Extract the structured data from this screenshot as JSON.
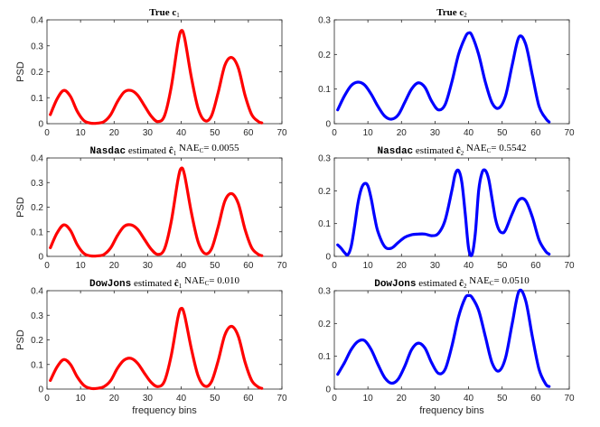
{
  "colors": {
    "c1": "#ff0000",
    "c2": "#0000ff"
  },
  "chart_data": [
    {
      "type": "line",
      "title": {
        "prefix": "True ",
        "symbol": "c",
        "sub": "1"
      },
      "xlabel": "",
      "ylabel": "PSD",
      "xlim": [
        0,
        70
      ],
      "ylim": [
        0,
        0.4
      ],
      "xticks": [
        0,
        10,
        20,
        30,
        40,
        50,
        60,
        70
      ],
      "yticks": [
        0,
        0.1,
        0.2,
        0.3,
        0.4
      ],
      "ytick_labels": [
        "0",
        "0.1",
        "0.2",
        "0.3",
        "0.4"
      ],
      "color": "#ff0000",
      "series": [
        {
          "name": "c1",
          "x": [
            1,
            3,
            5,
            7,
            9,
            11,
            13,
            15,
            17,
            19,
            21,
            23,
            25,
            27,
            29,
            31,
            33,
            35,
            37,
            39,
            40,
            41,
            43,
            45,
            47,
            49,
            51,
            53,
            55,
            57,
            59,
            61,
            63,
            64
          ],
          "y": [
            0.035,
            0.095,
            0.128,
            0.105,
            0.048,
            0.012,
            0.002,
            0.002,
            0.008,
            0.035,
            0.085,
            0.122,
            0.128,
            0.11,
            0.07,
            0.03,
            0.008,
            0.03,
            0.14,
            0.31,
            0.358,
            0.33,
            0.18,
            0.06,
            0.012,
            0.03,
            0.12,
            0.225,
            0.255,
            0.215,
            0.11,
            0.035,
            0.008,
            0.003
          ]
        }
      ]
    },
    {
      "type": "line",
      "title": {
        "prefix": "True ",
        "symbol": "c",
        "sub": "2"
      },
      "xlabel": "",
      "ylabel": "",
      "xlim": [
        0,
        70
      ],
      "ylim": [
        0,
        0.3
      ],
      "xticks": [
        0,
        10,
        20,
        30,
        40,
        50,
        60,
        70
      ],
      "yticks": [
        0,
        0.1,
        0.2,
        0.3
      ],
      "ytick_labels": [
        "0",
        "0.1",
        "0.2",
        "0.3"
      ],
      "color": "#0000ff",
      "series": [
        {
          "name": "c2",
          "x": [
            1,
            3,
            5,
            7,
            9,
            11,
            13,
            15,
            17,
            19,
            21,
            23,
            25,
            27,
            29,
            31,
            33,
            35,
            37,
            39,
            40,
            41,
            43,
            45,
            47,
            49,
            51,
            53,
            55,
            57,
            59,
            61,
            63,
            64
          ],
          "y": [
            0.04,
            0.08,
            0.11,
            0.12,
            0.112,
            0.085,
            0.05,
            0.022,
            0.013,
            0.025,
            0.062,
            0.1,
            0.118,
            0.105,
            0.065,
            0.04,
            0.055,
            0.12,
            0.2,
            0.25,
            0.262,
            0.255,
            0.2,
            0.12,
            0.06,
            0.045,
            0.08,
            0.17,
            0.25,
            0.23,
            0.14,
            0.05,
            0.015,
            0.005
          ]
        }
      ]
    },
    {
      "type": "line",
      "title": {
        "prefix": "Nasdac",
        "mid": " estimated ",
        "symbol": "ĉ",
        "sub": "1",
        "nae_label": " NAE",
        "nae_sub": "C",
        "nae_value": "= 0.0055"
      },
      "xlabel": "",
      "ylabel": "PSD",
      "xlim": [
        0,
        70
      ],
      "ylim": [
        0,
        0.4
      ],
      "xticks": [
        0,
        10,
        20,
        30,
        40,
        50,
        60,
        70
      ],
      "yticks": [
        0,
        0.1,
        0.2,
        0.3,
        0.4
      ],
      "ytick_labels": [
        "0",
        "0.1",
        "0.2",
        "0.3",
        "0.4"
      ],
      "color": "#ff0000",
      "series": [
        {
          "name": "Nasdac c1",
          "x": [
            1,
            3,
            5,
            7,
            9,
            11,
            13,
            15,
            17,
            19,
            21,
            23,
            25,
            27,
            29,
            31,
            33,
            35,
            37,
            39,
            40,
            41,
            43,
            45,
            47,
            49,
            51,
            53,
            55,
            57,
            59,
            61,
            63,
            64
          ],
          "y": [
            0.035,
            0.095,
            0.128,
            0.105,
            0.048,
            0.012,
            0.002,
            0.002,
            0.008,
            0.035,
            0.085,
            0.122,
            0.128,
            0.11,
            0.07,
            0.03,
            0.008,
            0.03,
            0.14,
            0.31,
            0.358,
            0.33,
            0.18,
            0.06,
            0.012,
            0.03,
            0.12,
            0.225,
            0.255,
            0.215,
            0.11,
            0.035,
            0.008,
            0.003
          ]
        }
      ]
    },
    {
      "type": "line",
      "title": {
        "prefix": "Nasdac",
        "mid": " estimated ",
        "symbol": "ĉ",
        "sub": "2",
        "nae_label": " NAE",
        "nae_sub": "C",
        "nae_value": "= 0.5542"
      },
      "xlabel": "",
      "ylabel": "",
      "xlim": [
        0,
        70
      ],
      "ylim": [
        0,
        0.3
      ],
      "xticks": [
        0,
        10,
        20,
        30,
        40,
        50,
        60,
        70
      ],
      "yticks": [
        0,
        0.1,
        0.2,
        0.3
      ],
      "ytick_labels": [
        "0",
        "0.1",
        "0.2",
        "0.3"
      ],
      "color": "#0000ff",
      "series": [
        {
          "name": "Nasdac c2",
          "x": [
            1,
            2,
            3,
            4,
            5,
            6,
            7,
            8,
            9,
            10,
            11,
            12,
            13,
            15,
            17,
            19,
            21,
            23,
            25,
            27,
            29,
            31,
            33,
            35,
            36,
            37,
            38,
            39,
            40,
            41,
            42,
            43,
            44,
            45,
            46,
            47,
            48,
            49,
            50,
            51,
            53,
            55,
            57,
            59,
            61,
            63,
            64
          ],
          "y": [
            0.035,
            0.025,
            0.012,
            0.005,
            0.03,
            0.09,
            0.16,
            0.205,
            0.222,
            0.215,
            0.175,
            0.12,
            0.075,
            0.03,
            0.025,
            0.042,
            0.058,
            0.066,
            0.068,
            0.068,
            0.063,
            0.07,
            0.11,
            0.2,
            0.25,
            0.262,
            0.225,
            0.13,
            0.025,
            0.005,
            0.07,
            0.2,
            0.255,
            0.262,
            0.235,
            0.175,
            0.115,
            0.082,
            0.072,
            0.08,
            0.13,
            0.172,
            0.17,
            0.12,
            0.05,
            0.015,
            0.007
          ]
        }
      ]
    },
    {
      "type": "line",
      "title": {
        "prefix": "DowJons",
        "mid": " estimated ",
        "symbol": "ĉ",
        "sub": "1",
        "nae_label": " NAE",
        "nae_sub": "C",
        "nae_value": "= 0.010"
      },
      "xlabel": "frequency bins",
      "ylabel": "PSD",
      "xlim": [
        0,
        70
      ],
      "ylim": [
        0,
        0.4
      ],
      "xticks": [
        0,
        10,
        20,
        30,
        40,
        50,
        60,
        70
      ],
      "yticks": [
        0,
        0.1,
        0.2,
        0.3,
        0.4
      ],
      "ytick_labels": [
        "0",
        "0.1",
        "0.2",
        "0.3",
        "0.4"
      ],
      "color": "#ff0000",
      "series": [
        {
          "name": "DowJons c1",
          "x": [
            1,
            3,
            5,
            7,
            9,
            11,
            13,
            15,
            17,
            19,
            21,
            23,
            25,
            27,
            29,
            31,
            33,
            35,
            37,
            39,
            40,
            41,
            43,
            45,
            47,
            49,
            51,
            53,
            55,
            57,
            59,
            61,
            63,
            64
          ],
          "y": [
            0.035,
            0.09,
            0.12,
            0.1,
            0.05,
            0.015,
            0.003,
            0.003,
            0.01,
            0.035,
            0.085,
            0.118,
            0.125,
            0.105,
            0.065,
            0.028,
            0.01,
            0.032,
            0.135,
            0.29,
            0.328,
            0.3,
            0.165,
            0.055,
            0.012,
            0.03,
            0.115,
            0.22,
            0.255,
            0.215,
            0.11,
            0.035,
            0.008,
            0.003
          ]
        }
      ]
    },
    {
      "type": "line",
      "title": {
        "prefix": "DowJons",
        "mid": " estimated ",
        "symbol": "ĉ",
        "sub": "2",
        "nae_label": " NAE",
        "nae_sub": "C",
        "nae_value": "= 0.0510"
      },
      "xlabel": "frequency bins",
      "ylabel": "",
      "xlim": [
        0,
        70
      ],
      "ylim": [
        0,
        0.3
      ],
      "xticks": [
        0,
        10,
        20,
        30,
        40,
        50,
        60,
        70
      ],
      "yticks": [
        0,
        0.1,
        0.2,
        0.3
      ],
      "ytick_labels": [
        "0",
        "0.1",
        "0.2",
        "0.3"
      ],
      "color": "#0000ff",
      "series": [
        {
          "name": "DowJons c2",
          "x": [
            1,
            3,
            5,
            7,
            9,
            11,
            13,
            15,
            17,
            19,
            21,
            23,
            25,
            27,
            29,
            31,
            33,
            35,
            37,
            39,
            40,
            41,
            43,
            45,
            47,
            49,
            51,
            53,
            55,
            57,
            59,
            61,
            63,
            64
          ],
          "y": [
            0.045,
            0.08,
            0.12,
            0.145,
            0.148,
            0.12,
            0.075,
            0.035,
            0.018,
            0.03,
            0.07,
            0.12,
            0.14,
            0.125,
            0.08,
            0.048,
            0.06,
            0.13,
            0.22,
            0.278,
            0.285,
            0.28,
            0.24,
            0.16,
            0.08,
            0.055,
            0.095,
            0.2,
            0.298,
            0.27,
            0.16,
            0.06,
            0.015,
            0.008
          ]
        }
      ]
    }
  ]
}
